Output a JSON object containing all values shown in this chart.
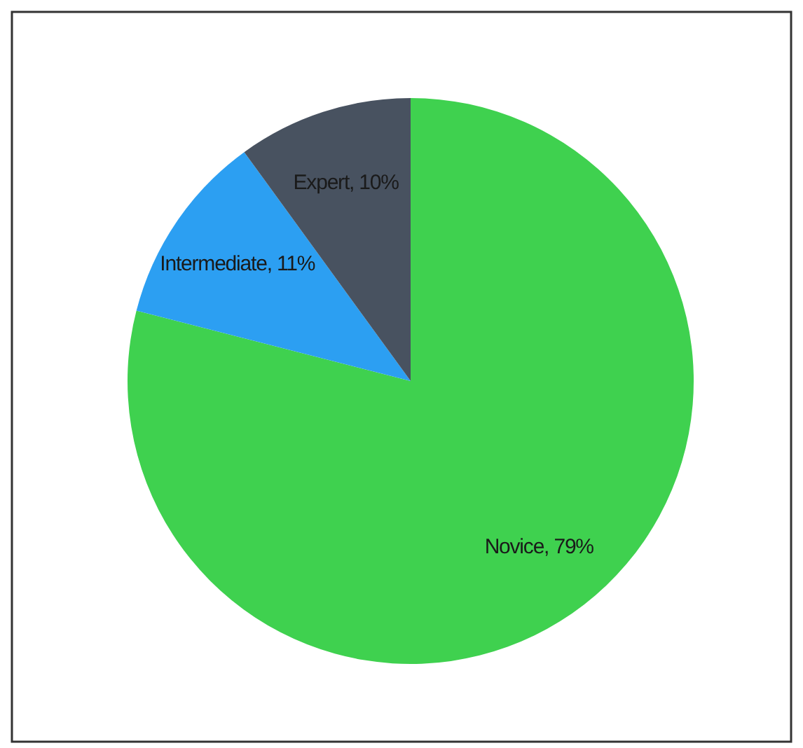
{
  "chart_data": {
    "type": "pie",
    "categories": [
      "Novice",
      "Intermediate",
      "Expert"
    ],
    "values": [
      79,
      11,
      10
    ],
    "colors": [
      "#3fd14f",
      "#2c9ff2",
      "#485260"
    ],
    "value_labels": [
      "79%",
      "11%",
      "10%"
    ]
  }
}
